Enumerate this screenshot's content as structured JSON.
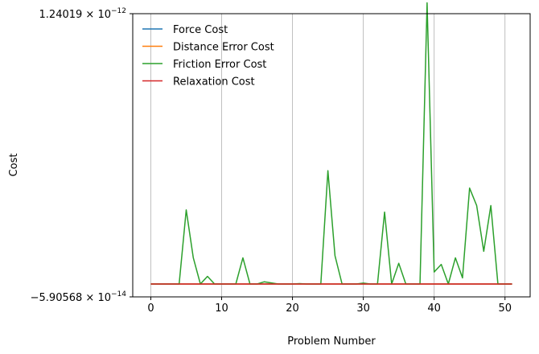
{
  "chart_data": {
    "type": "line",
    "xlabel": "Problem Number",
    "ylabel": "Cost",
    "xlim": [
      -2.55,
      53.55
    ],
    "ylim": [
      -5.90568e-14,
      1.24019e-12
    ],
    "xticks": [
      0,
      10,
      20,
      30,
      40,
      50
    ],
    "yticks": [
      {
        "value": -5.90568e-14,
        "mantissa": "−5.90568",
        "exponent": "−14"
      },
      {
        "value": 1.24019e-12,
        "mantissa": "1.24019",
        "exponent": "−12"
      }
    ],
    "grid": "x-only",
    "legend_position": "upper-left",
    "x": [
      0,
      1,
      2,
      3,
      4,
      5,
      6,
      7,
      8,
      9,
      10,
      11,
      12,
      13,
      14,
      15,
      16,
      17,
      18,
      19,
      20,
      21,
      22,
      23,
      24,
      25,
      26,
      27,
      28,
      29,
      30,
      31,
      32,
      33,
      34,
      35,
      36,
      37,
      38,
      39,
      40,
      41,
      42,
      43,
      44,
      45,
      46,
      47,
      48,
      49,
      50,
      51
    ],
    "series": [
      {
        "name": "Force Cost",
        "color": "#1f77b4",
        "values": [
          0,
          0,
          0,
          0,
          0,
          0,
          0,
          0,
          0,
          0,
          0,
          0,
          0,
          0,
          0,
          0,
          0,
          0,
          0,
          0,
          0,
          0,
          0,
          0,
          0,
          0,
          0,
          0,
          0,
          0,
          0,
          0,
          0,
          0,
          0,
          0,
          0,
          0,
          0,
          0,
          0,
          0,
          0,
          0,
          0,
          0,
          0,
          0,
          0,
          0,
          0,
          0
        ]
      },
      {
        "name": "Distance Error Cost",
        "color": "#ff7f0e",
        "values": [
          0,
          0,
          0,
          0,
          0,
          0,
          0,
          0,
          0,
          0,
          0,
          0,
          0,
          0,
          0,
          0,
          0,
          0,
          0,
          0,
          0,
          0,
          0,
          0,
          0,
          0,
          0,
          0,
          0,
          0,
          0,
          0,
          0,
          0,
          0,
          0,
          0,
          0,
          0,
          0,
          0,
          0,
          0,
          0,
          0,
          0,
          0,
          0,
          0,
          0,
          0,
          0
        ]
      },
      {
        "name": "Friction Error Cost",
        "color": "#2ca02c",
        "values": [
          0,
          0,
          0,
          0,
          0,
          3.4e-13,
          1.2e-13,
          0,
          3.5e-14,
          0,
          0,
          0,
          0,
          1.2e-13,
          0,
          0,
          1e-14,
          5e-15,
          0,
          0,
          0,
          2e-15,
          0,
          0,
          0,
          5.2e-13,
          1.3e-13,
          0,
          0,
          0,
          4e-15,
          0,
          0,
          3.3e-13,
          0,
          9.5e-14,
          0,
          0,
          0,
          1.29e-12,
          5.5e-14,
          9e-14,
          0,
          1.2e-13,
          2.8e-14,
          4.4e-13,
          3.6e-13,
          1.5e-13,
          3.6e-13,
          0,
          0,
          0
        ]
      },
      {
        "name": "Relaxation Cost",
        "color": "#d62728",
        "values": [
          0,
          0,
          0,
          0,
          0,
          0,
          0,
          0,
          0,
          0,
          0,
          0,
          0,
          0,
          0,
          0,
          0,
          0,
          0,
          0,
          0,
          0,
          0,
          0,
          0,
          0,
          0,
          0,
          0,
          0,
          0,
          0,
          0,
          0,
          0,
          0,
          0,
          0,
          0,
          0,
          0,
          0,
          0,
          0,
          0,
          0,
          0,
          0,
          0,
          0,
          0,
          0
        ]
      }
    ]
  }
}
